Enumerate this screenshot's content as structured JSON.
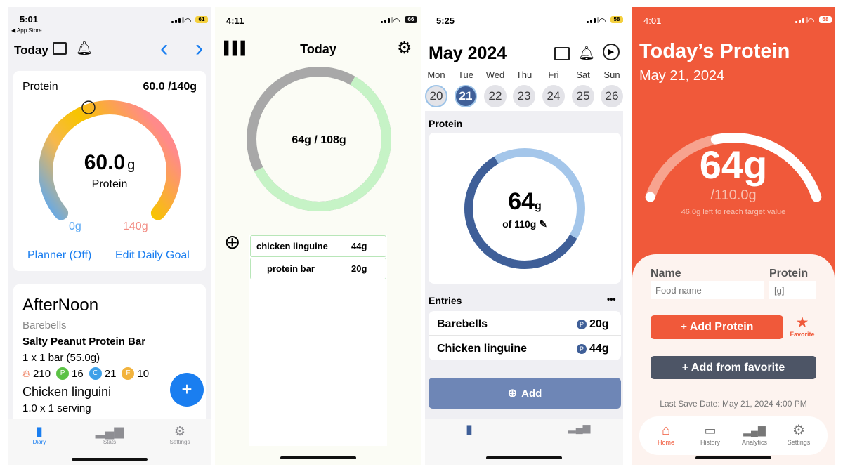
{
  "phone1": {
    "status": {
      "time": "5:01",
      "back": "◀ App Store",
      "battery": "61"
    },
    "nav": {
      "title": "Today",
      "prev": "‹",
      "next": "›"
    },
    "protein_card": {
      "label": "Protein",
      "value": "60.0",
      "goal": " /140g",
      "center_value": "60.0",
      "center_unit": "g",
      "center_label": "Protein",
      "min_label": "0g",
      "max_label": "140g",
      "progress": 0.4286,
      "planner": "Planner (Off)",
      "edit_goal": "Edit Daily Goal"
    },
    "diary": {
      "section": "AfterNoon",
      "brand": "Barebells",
      "item": "Salty Peanut Protein Bar",
      "qty": "1 x  1 bar (55.0g)",
      "calories": "210",
      "protein": "16",
      "carbs": "21",
      "fat": "10",
      "p_badge": "P",
      "c_badge": "C",
      "f_badge": "F",
      "item2": "Chicken linguini",
      "qty2": "1.0 x  1 serving"
    },
    "fab": "+",
    "tabs": [
      {
        "label": "Diary"
      },
      {
        "label": "Stats"
      },
      {
        "label": "Settings"
      }
    ],
    "colors": {
      "accent": "#1a7ef0"
    }
  },
  "phone2": {
    "status": {
      "time": "4:11",
      "battery": "66"
    },
    "title": "Today",
    "ring_text": "64g / 108g",
    "progress": 0.5926,
    "add_icon": "⊕",
    "entries": [
      {
        "name": "chicken linguine",
        "amount": "44g"
      },
      {
        "name": "protein bar",
        "amount": "20g"
      }
    ]
  },
  "phone3": {
    "status": {
      "time": "5:25",
      "battery": "58"
    },
    "month": "May 2024",
    "weekdays": [
      "Mon",
      "Tue",
      "Wed",
      "Thu",
      "Fri",
      "Sat",
      "Sun"
    ],
    "days": [
      "20",
      "21",
      "22",
      "23",
      "24",
      "25",
      "26"
    ],
    "section_protein": "Protein",
    "ring_value": "64",
    "ring_unit": "g",
    "ring_goal": "of 110g",
    "progress": 0.5818,
    "section_entries": "Entries",
    "more": "•••",
    "entries": [
      {
        "name": "Barebells",
        "badge": "P",
        "amount": "20g"
      },
      {
        "name": "Chicken linguine",
        "badge": "P",
        "amount": "44g"
      }
    ],
    "add_label": "Add"
  },
  "phone4": {
    "status": {
      "time": "4:01",
      "battery": "68"
    },
    "title": "Today’s Protein",
    "date": "May 21, 2024",
    "value": "64g",
    "target": "/110.0g",
    "left_note": "46.0g left to reach target value",
    "progress": 0.5818,
    "name_label": "Name",
    "protein_label": "Protein",
    "name_placeholder": "Food name",
    "protein_placeholder": "[g]",
    "add_protein": "+ Add Protein",
    "favorite": "Favorite",
    "add_favorite": "+ Add from favorite",
    "last_save": "Last Save Date: May 21, 2024 4:00 PM",
    "tabs": [
      {
        "label": "Home"
      },
      {
        "label": "History"
      },
      {
        "label": "Analytics"
      },
      {
        "label": "Settings"
      }
    ],
    "colors": {
      "brand": "#f0593a"
    }
  }
}
